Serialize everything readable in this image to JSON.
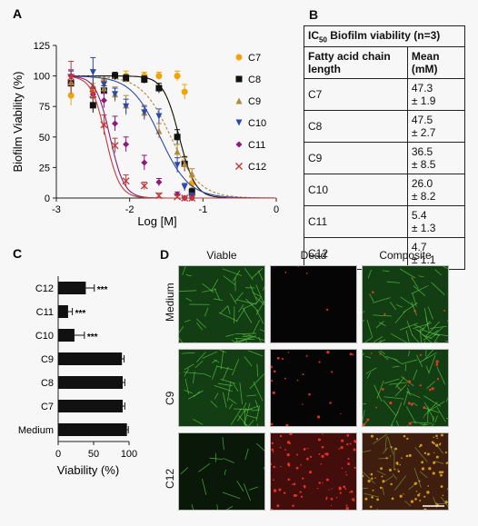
{
  "panels": {
    "A": "A",
    "B": "B",
    "C": "C",
    "D": "D"
  },
  "chart_data": [
    {
      "type": "line",
      "panel": "A",
      "xlabel": "Log [M]",
      "ylabel": "Biofilm Viability (%)",
      "xlim": [
        -3,
        0
      ],
      "ylim": [
        0,
        125
      ],
      "xticks": [
        -3,
        -2,
        -1,
        0
      ],
      "yticks": [
        0,
        25,
        50,
        75,
        100,
        125
      ],
      "x": [
        -2.8,
        -2.5,
        -2.35,
        -2.2,
        -2.05,
        -1.8,
        -1.6,
        -1.35,
        -1.25,
        -1.15
      ],
      "series": [
        {
          "name": "C7",
          "color": "#f0a30a",
          "marker": "circle",
          "ic50": 47.3,
          "values": [
            84,
            88,
            96,
            100,
            100,
            100,
            100,
            100,
            87,
            12
          ],
          "errors": [
            8,
            6,
            4,
            3,
            4,
            3,
            3,
            4,
            6,
            5
          ]
        },
        {
          "name": "C8",
          "color": "#111111",
          "marker": "square",
          "ic50": 47.5,
          "values": [
            94,
            76,
            88,
            100,
            98,
            97,
            90,
            50,
            28,
            5
          ],
          "errors": [
            6,
            6,
            4,
            3,
            3,
            3,
            4,
            6,
            6,
            3
          ]
        },
        {
          "name": "C9",
          "color": "#b08a3e",
          "marker": "triangle",
          "ic50": 36.5,
          "values": [
            95,
            92,
            90,
            85,
            76,
            70,
            55,
            38,
            28,
            20
          ],
          "errors": [
            10,
            7,
            6,
            6,
            8,
            6,
            6,
            6,
            5,
            4
          ]
        },
        {
          "name": "C10",
          "color": "#2b4aa8",
          "marker": "triangle-down",
          "ic50": 26.0,
          "values": [
            99,
            103,
            93,
            85,
            75,
            70,
            67,
            27,
            9,
            2
          ],
          "errors": [
            5,
            12,
            5,
            5,
            6,
            5,
            6,
            6,
            3,
            2
          ]
        },
        {
          "name": "C11",
          "color": "#8c1a7a",
          "marker": "diamond",
          "ic50": 5.4,
          "values": [
            100,
            85,
            80,
            61,
            44,
            29,
            13,
            3,
            0,
            0
          ],
          "errors": [
            5,
            5,
            6,
            6,
            6,
            6,
            3,
            2,
            1,
            1
          ]
        },
        {
          "name": "C12",
          "color": "#c23a3a",
          "marker": "x",
          "ic50": 4.7,
          "values": [
            99,
            85,
            60,
            43,
            14,
            10,
            2,
            1,
            0,
            0
          ],
          "errors": [
            13,
            6,
            8,
            6,
            5,
            3,
            2,
            1,
            1,
            1
          ]
        }
      ]
    },
    {
      "type": "bar",
      "panel": "C",
      "orientation": "horizontal",
      "xlabel": "Viability (%)",
      "xlim": [
        0,
        100
      ],
      "xticks": [
        0,
        50,
        100
      ],
      "categories": [
        "C12",
        "C11",
        "C10",
        "C9",
        "C8",
        "C7",
        "Medium"
      ],
      "values": [
        39,
        14,
        23,
        90,
        91,
        91,
        97
      ],
      "errors": [
        12,
        6,
        14,
        3,
        3,
        3,
        2
      ],
      "significance": [
        "***",
        "***",
        "***",
        "",
        "",
        "",
        ""
      ]
    }
  ],
  "table": {
    "title_prefix": "IC",
    "title_sub": "50",
    "title_suffix": " Biofilm viability (n=3)",
    "col1": "Fatty acid chain length",
    "col2": "Mean (mM)",
    "rows": [
      {
        "label": "C7",
        "mean": "47.3",
        "sd": "± 1.9"
      },
      {
        "label": "C8",
        "mean": "47.5",
        "sd": "± 2.7"
      },
      {
        "label": "C9",
        "mean": "36.5",
        "sd": "± 8.5"
      },
      {
        "label": "C10",
        "mean": "26.0",
        "sd": "± 8.2"
      },
      {
        "label": "C11",
        "mean": "5.4",
        "sd": "± 1.3"
      },
      {
        "label": "C12",
        "mean": "4.7",
        "sd": "± 1.1"
      }
    ]
  },
  "micrographs": {
    "columns": [
      "Viable",
      "Dead",
      "Composite"
    ],
    "rows": [
      "Medium",
      "C9",
      "C12"
    ],
    "colors": {
      "viable": "#2fa52a",
      "dead": "#d0201a",
      "background": "#050505"
    }
  }
}
